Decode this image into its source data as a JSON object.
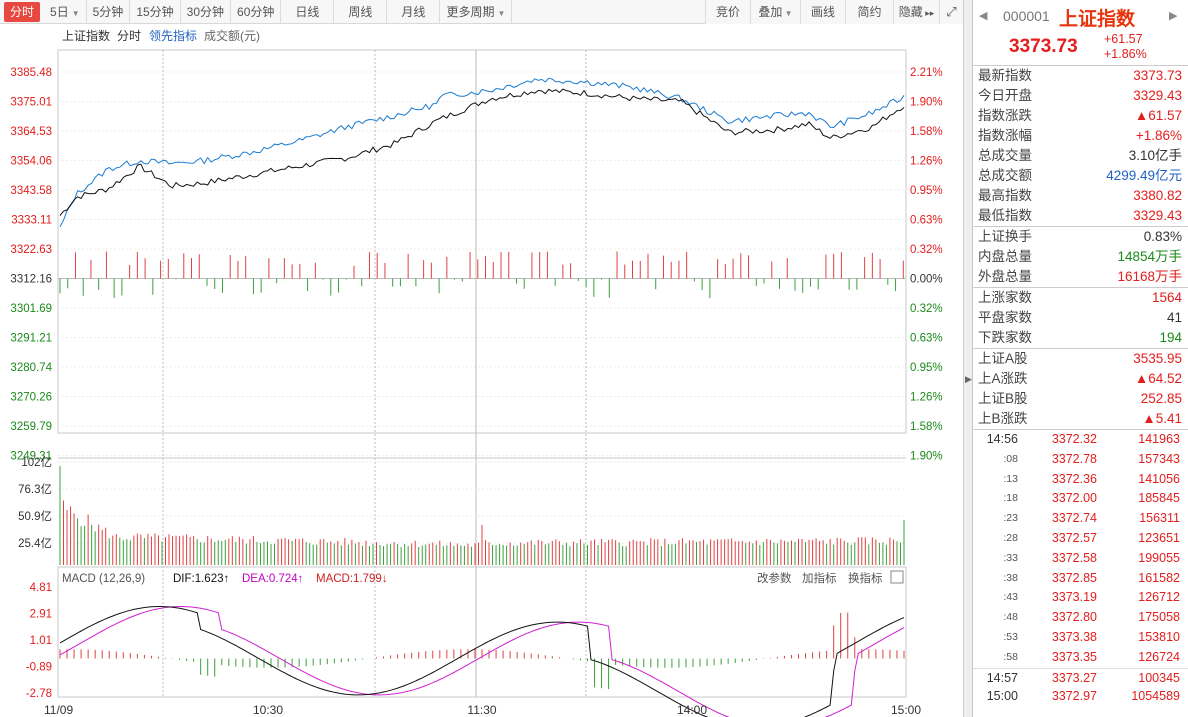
{
  "toolbar": {
    "tabs": [
      "分时",
      "5日",
      "5分钟",
      "15分钟",
      "30分钟",
      "60分钟",
      "日线",
      "周线",
      "月线",
      "更多周期"
    ],
    "right": [
      "竞价",
      "叠加",
      "画线",
      "简约",
      "隐藏"
    ]
  },
  "chart_header": {
    "name": "上证指数",
    "mode": "分时",
    "leading": "领先指标",
    "amount": "成交额(元)"
  },
  "price_axis": {
    "left": [
      "3385.48",
      "3375.01",
      "3364.53",
      "3354.06",
      "3343.58",
      "3333.11",
      "3322.63",
      "3312.16",
      "3301.69",
      "3291.21",
      "3280.74",
      "3270.26",
      "3259.79",
      "3249.31"
    ],
    "right": [
      "2.21%",
      "1.90%",
      "1.58%",
      "1.26%",
      "0.95%",
      "0.63%",
      "0.32%",
      "0.00%",
      "0.32%",
      "0.63%",
      "0.95%",
      "1.26%",
      "1.58%",
      "1.90%"
    ]
  },
  "volume_axis": [
    "102亿",
    "76.3亿",
    "50.9亿",
    "25.4亿"
  ],
  "macd": {
    "title": "MACD (12,26,9)",
    "dif": "DIF:1.623",
    "dea": "DEA:0.724",
    "macd": "MACD:1.799",
    "btn1": "改参数",
    "btn2": "加指标",
    "btn3": "换指标",
    "axis": [
      "4.81",
      "2.91",
      "1.01",
      "-0.89",
      "-2.78"
    ]
  },
  "time_axis": [
    "11/09",
    "10:30",
    "11:30",
    "14:00",
    "15:00"
  ],
  "chart_data": {
    "type": "line",
    "title": "上证指数",
    "x_range": [
      "09:30",
      "15:00"
    ],
    "ylim": [
      3249.31,
      3385.48
    ],
    "prev_close": 3312.16,
    "price_keypoints": [
      [
        0,
        3334.5
      ],
      [
        5,
        3341
      ],
      [
        15,
        3344
      ],
      [
        25,
        3352
      ],
      [
        35,
        3345
      ],
      [
        45,
        3346
      ],
      [
        60,
        3349
      ],
      [
        75,
        3352
      ],
      [
        90,
        3355
      ],
      [
        105,
        3360
      ],
      [
        118,
        3368
      ],
      [
        120,
        3369
      ],
      [
        135,
        3376
      ],
      [
        150,
        3379
      ],
      [
        165,
        3378
      ],
      [
        180,
        3376
      ],
      [
        195,
        3375
      ],
      [
        210,
        3364
      ],
      [
        225,
        3365
      ],
      [
        235,
        3367
      ],
      [
        242,
        3362
      ],
      [
        255,
        3366
      ],
      [
        265,
        3373.7
      ]
    ],
    "leading_keypoints": [
      [
        0,
        3330
      ],
      [
        5,
        3342
      ],
      [
        15,
        3351
      ],
      [
        25,
        3354
      ],
      [
        35,
        3353
      ],
      [
        45,
        3354
      ],
      [
        60,
        3357
      ],
      [
        75,
        3361
      ],
      [
        90,
        3366
      ],
      [
        105,
        3370
      ],
      [
        118,
        3374
      ],
      [
        120,
        3377
      ],
      [
        135,
        3379
      ],
      [
        150,
        3383
      ],
      [
        165,
        3382
      ],
      [
        180,
        3380
      ],
      [
        195,
        3376
      ],
      [
        210,
        3368
      ],
      [
        225,
        3370
      ],
      [
        235,
        3371
      ],
      [
        242,
        3366
      ],
      [
        255,
        3371
      ],
      [
        265,
        3376.6
      ]
    ]
  },
  "side": {
    "code": "000001",
    "name": "上证指数",
    "price": "3373.73",
    "chg": "+61.57",
    "pct": "+1.86%",
    "g1": [
      [
        "最新指数",
        "3373.73",
        "up"
      ],
      [
        "今日开盘",
        "3329.43",
        "up"
      ],
      [
        "指数涨跌",
        "▲61.57",
        "up"
      ],
      [
        "指数涨幅",
        "+1.86%",
        "up"
      ],
      [
        "总成交量",
        "3.10亿手",
        "blk"
      ],
      [
        "总成交额",
        "4299.49亿元",
        "blu"
      ],
      [
        "最高指数",
        "3380.82",
        "up"
      ],
      [
        "最低指数",
        "3329.43",
        "up"
      ]
    ],
    "g2": [
      [
        "上证换手",
        "0.83%",
        "blk"
      ],
      [
        "内盘总量",
        "14854万手",
        "dn"
      ],
      [
        "外盘总量",
        "16168万手",
        "up"
      ]
    ],
    "g3": [
      [
        "上涨家数",
        "1564",
        "up"
      ],
      [
        "平盘家数",
        "41",
        "blk"
      ],
      [
        "下跌家数",
        "194",
        "dn"
      ]
    ],
    "g4": [
      [
        "上证A股",
        "3535.95",
        "up"
      ],
      [
        "上A涨跌",
        "▲64.52",
        "up"
      ],
      [
        "上证B股",
        "252.85",
        "up"
      ],
      [
        "上B涨跌",
        "▲5.41",
        "up"
      ]
    ],
    "ticks": [
      [
        "14:56",
        "3372.32",
        "141963"
      ],
      [
        ":08",
        "3372.78",
        "157343"
      ],
      [
        ":13",
        "3372.36",
        "141056"
      ],
      [
        ":18",
        "3372.00",
        "185845"
      ],
      [
        ":23",
        "3372.74",
        "156311"
      ],
      [
        ":28",
        "3372.57",
        "123651"
      ],
      [
        ":33",
        "3372.58",
        "199055"
      ],
      [
        ":38",
        "3372.85",
        "161582"
      ],
      [
        ":43",
        "3373.19",
        "126712"
      ],
      [
        ":48",
        "3372.80",
        "175058"
      ],
      [
        ":53",
        "3373.38",
        "153810"
      ],
      [
        ":58",
        "3373.35",
        "126724"
      ],
      [
        "14:57",
        "3373.27",
        "100345"
      ],
      [
        "15:00",
        "3372.97",
        "1054589"
      ]
    ]
  }
}
